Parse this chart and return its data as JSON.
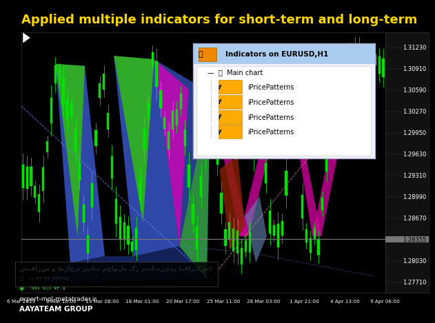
{
  "title": "Applied multiple indicators for short-term and long-term",
  "title_color": "#FFD700",
  "title_fontsize": 13,
  "bg_color": "#000000",
  "chart_bg": "#000000",
  "ytick_labels": [
    "1.31230",
    "1.30910",
    "1.30590",
    "1.30270",
    "1.29950",
    "1.29630",
    "1.29310",
    "1.28990",
    "1.28670",
    "1.28355",
    "1.28030",
    "1.27710"
  ],
  "ytick_vals": [
    1.3123,
    1.3091,
    1.3059,
    1.3027,
    1.2995,
    1.2963,
    1.2931,
    1.2899,
    1.2867,
    1.28355,
    1.2803,
    1.2771
  ],
  "ymin": 1.2755,
  "ymax": 1.3145,
  "xtick_labels": [
    "6 Mar 2013",
    "8 Mar 16:00",
    "13 Mar 08:00",
    "18 Mar 01:00",
    "20 Mar 17:00",
    "25 Mar 11:00",
    "28 Mar 03:00",
    "1 Apr 21:00",
    "4 Apr 13:00",
    "9 Apr 06:00"
  ],
  "hline_val": 1.28355,
  "indicator_title": "Indicators on EURUSD,H1",
  "indicator_main": "Main chart",
  "indicator_items": [
    "iPricePatterns",
    "iPricePatterns",
    "iPricePatterns",
    "iPricePatterns"
  ],
  "watermark_line1": "سفارش و طراحی ربات معامله گر متاتریدر (فارکس)",
  "watermark_phone1": "۱۱ ۳۳ ۴۳ ۳۳۳-۷۷۰",
  "watermark_phone2": "۰۹۹۶ ۹۱۶ ۹۳۰۷",
  "watermark_url": "expert-mql-metatrader.ir",
  "watermark_group": "AAYATEAM GROUP"
}
